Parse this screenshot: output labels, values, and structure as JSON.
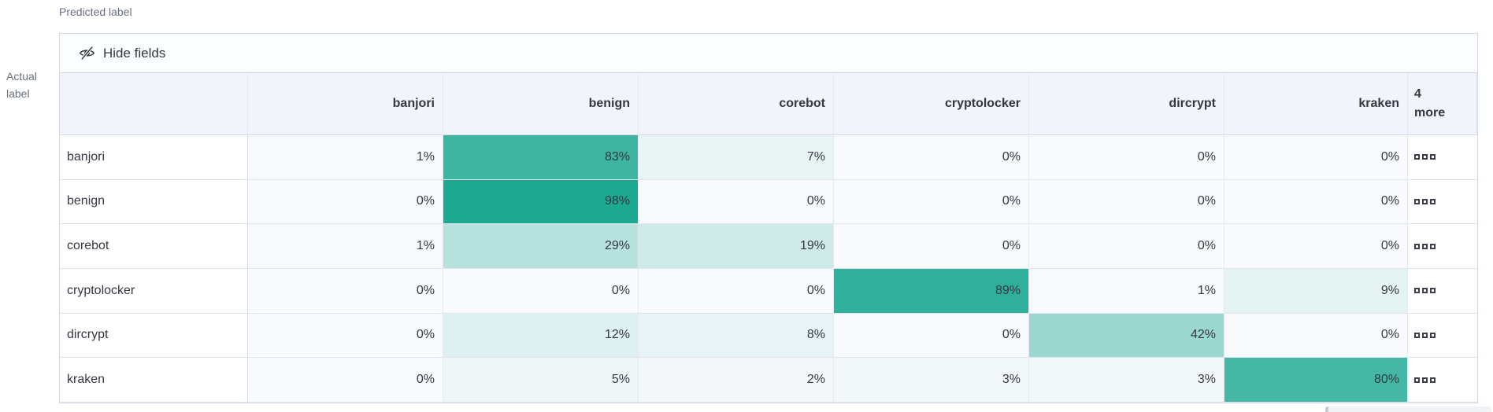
{
  "axes": {
    "predicted_label": "Predicted label",
    "actual_label_lines": [
      "Actual",
      "label"
    ]
  },
  "toolbar": {
    "hide_fields_label": "Hide fields",
    "hide_fields_icon": "eye-slash-icon"
  },
  "grid_ui": {
    "more_header": "4 more",
    "more_cell_icon": "cell-expand-squares-icon"
  },
  "chart_data": {
    "type": "heatmap",
    "x_label": "Predicted label",
    "y_label": "Actual label",
    "columns": [
      "banjori",
      "benign",
      "corebot",
      "cryptolocker",
      "dircrypt",
      "kraken"
    ],
    "hidden_columns_indicator": "4 more",
    "rows": [
      "banjori",
      "benign",
      "corebot",
      "cryptolocker",
      "dircrypt",
      "kraken"
    ],
    "values_percent": [
      [
        1,
        83,
        7,
        0,
        0,
        0
      ],
      [
        0,
        98,
        0,
        0,
        0,
        0
      ],
      [
        1,
        29,
        19,
        0,
        0,
        0
      ],
      [
        0,
        0,
        0,
        89,
        1,
        9
      ],
      [
        0,
        12,
        8,
        0,
        42,
        0
      ],
      [
        0,
        5,
        2,
        3,
        3,
        80
      ]
    ],
    "value_format": "percent",
    "colors": {
      "scale_min": "#f9fafd",
      "scale_max": "#17a78e",
      "cell_text": "#343741",
      "header_bg": "#f1f4fa",
      "border": "#d3dae6"
    },
    "legend_position": "none",
    "grid": true
  }
}
